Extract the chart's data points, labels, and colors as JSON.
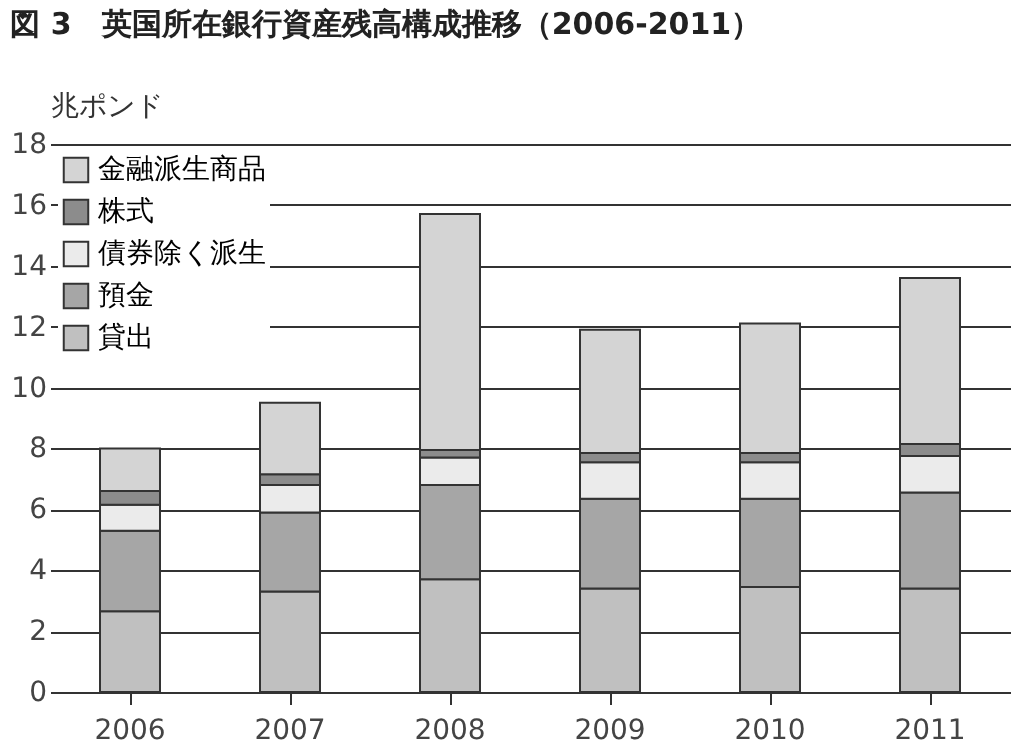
{
  "chart_data": {
    "type": "bar",
    "stacked": true,
    "title": "図 3　英国所在銀行資産残高構成推移（2006-2011）",
    "ylabel": "兆ポンド",
    "categories": [
      "2006",
      "2007",
      "2008",
      "2009",
      "2010",
      "2011"
    ],
    "series": [
      {
        "name": "貸出",
        "color": "#c0c0c0",
        "values": [
          2.65,
          3.3,
          3.7,
          3.4,
          3.45,
          3.4
        ]
      },
      {
        "name": "預金",
        "color": "#a6a6a6",
        "values": [
          2.65,
          2.6,
          3.1,
          2.95,
          2.9,
          3.15
        ]
      },
      {
        "name": "債券除く派生",
        "color": "#ebebeb",
        "values": [
          0.85,
          0.9,
          0.9,
          1.2,
          1.2,
          1.2
        ]
      },
      {
        "name": "株式",
        "color": "#8c8c8c",
        "values": [
          0.45,
          0.35,
          0.25,
          0.3,
          0.3,
          0.4
        ]
      },
      {
        "name": "金融派生商品",
        "color": "#d4d4d4",
        "values": [
          1.4,
          2.35,
          7.75,
          4.05,
          4.25,
          5.45
        ]
      }
    ],
    "ylim": [
      0,
      18
    ],
    "yticks": [
      0,
      2,
      4,
      6,
      8,
      10,
      12,
      14,
      16,
      18
    ],
    "grid": "y",
    "legend": "top left"
  }
}
